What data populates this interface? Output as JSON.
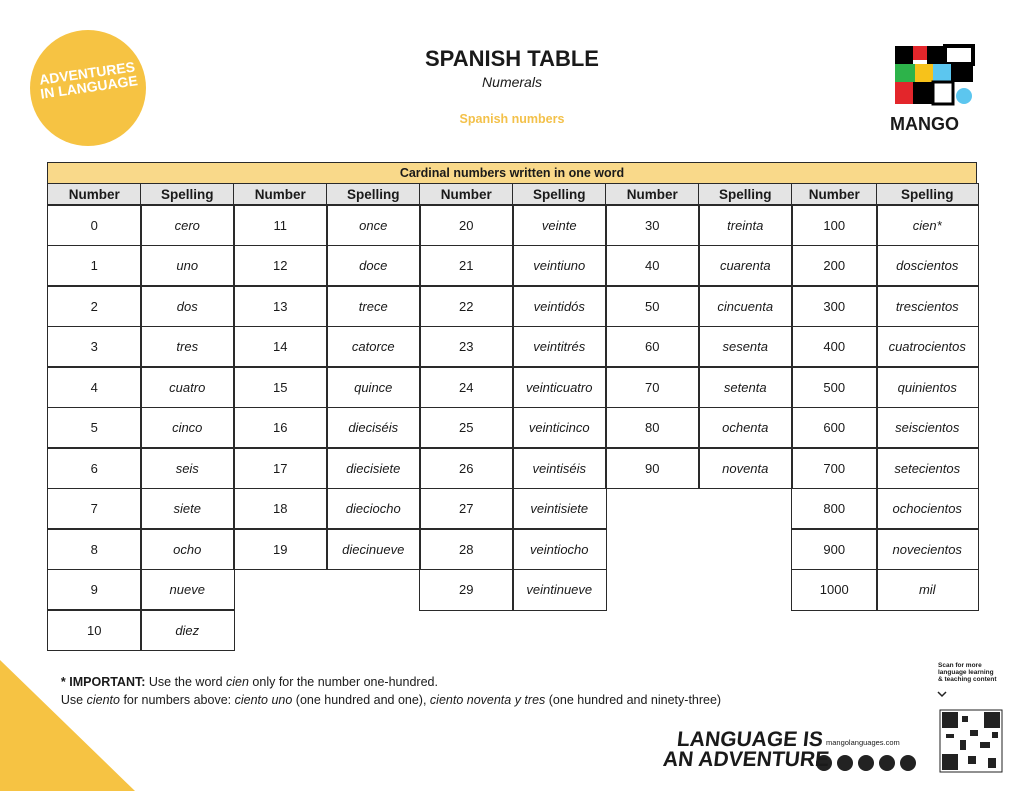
{
  "header": {
    "logo_left": [
      "ADVENTURES",
      "IN LANGUAGE"
    ],
    "title": "SPANISH TABLE",
    "subtitle": "Numerals",
    "section": "Spanish numbers",
    "brand": "MANGO"
  },
  "table": {
    "caption": "Cardinal numbers written in one word",
    "headers": [
      "Number",
      "Spelling",
      "Number",
      "Spelling",
      "Number",
      "Spelling",
      "Number",
      "Spelling",
      "Number",
      "Spelling"
    ],
    "groups": [
      {
        "rows": [
          [
            0,
            "cero"
          ],
          [
            1,
            "uno"
          ],
          [
            2,
            "dos"
          ],
          [
            3,
            "tres"
          ],
          [
            4,
            "cuatro"
          ],
          [
            5,
            "cinco"
          ],
          [
            6,
            "seis"
          ],
          [
            7,
            "siete"
          ],
          [
            8,
            "ocho"
          ],
          [
            9,
            "nueve"
          ],
          [
            10,
            "diez"
          ]
        ]
      },
      {
        "rows": [
          [
            11,
            "once"
          ],
          [
            12,
            "doce"
          ],
          [
            13,
            "trece"
          ],
          [
            14,
            "catorce"
          ],
          [
            15,
            "quince"
          ],
          [
            16,
            "dieciséis"
          ],
          [
            17,
            "diecisiete"
          ],
          [
            18,
            "dieciocho"
          ],
          [
            19,
            "diecinueve"
          ]
        ]
      },
      {
        "rows": [
          [
            20,
            "veinte"
          ],
          [
            21,
            "veintiuno"
          ],
          [
            22,
            "veintidós"
          ],
          [
            23,
            "veintitrés"
          ],
          [
            24,
            "veinticuatro"
          ],
          [
            25,
            "veinticinco"
          ],
          [
            26,
            "veintiséis"
          ],
          [
            27,
            "veintisiete"
          ],
          [
            28,
            "veintiocho"
          ],
          [
            29,
            "veintinueve"
          ]
        ]
      },
      {
        "rows": [
          [
            30,
            "treinta"
          ],
          [
            40,
            "cuarenta"
          ],
          [
            50,
            "cincuenta"
          ],
          [
            60,
            "sesenta"
          ],
          [
            70,
            "setenta"
          ],
          [
            80,
            "ochenta"
          ],
          [
            90,
            "noventa"
          ]
        ]
      },
      {
        "rows": [
          [
            100,
            "cien*"
          ],
          [
            200,
            "doscientos"
          ],
          [
            300,
            "trescientos"
          ],
          [
            400,
            "cuatrocientos"
          ],
          [
            500,
            "quinientos"
          ],
          [
            600,
            "seiscientos"
          ],
          [
            700,
            "setecientos"
          ],
          [
            800,
            "ochocientos"
          ],
          [
            900,
            "novecientos"
          ],
          [
            1000,
            "mil"
          ]
        ]
      }
    ]
  },
  "note": {
    "line1": [
      "* IMPORTANT:",
      " Use the word ",
      "cien",
      " only for the number one-hundred."
    ],
    "line2": [
      "Use ",
      "ciento",
      " for numbers above: ",
      "ciento uno",
      " (one hundred and one), ",
      "ciento noventa y tres",
      " (one hundred and ninety-three)"
    ]
  },
  "footer": {
    "scan": [
      "Scan for more",
      "language learning",
      "& teaching content"
    ],
    "slogan": [
      "LANGUAGE IS",
      "AN ADVENTURE"
    ],
    "website": "mangolanguages.com"
  }
}
